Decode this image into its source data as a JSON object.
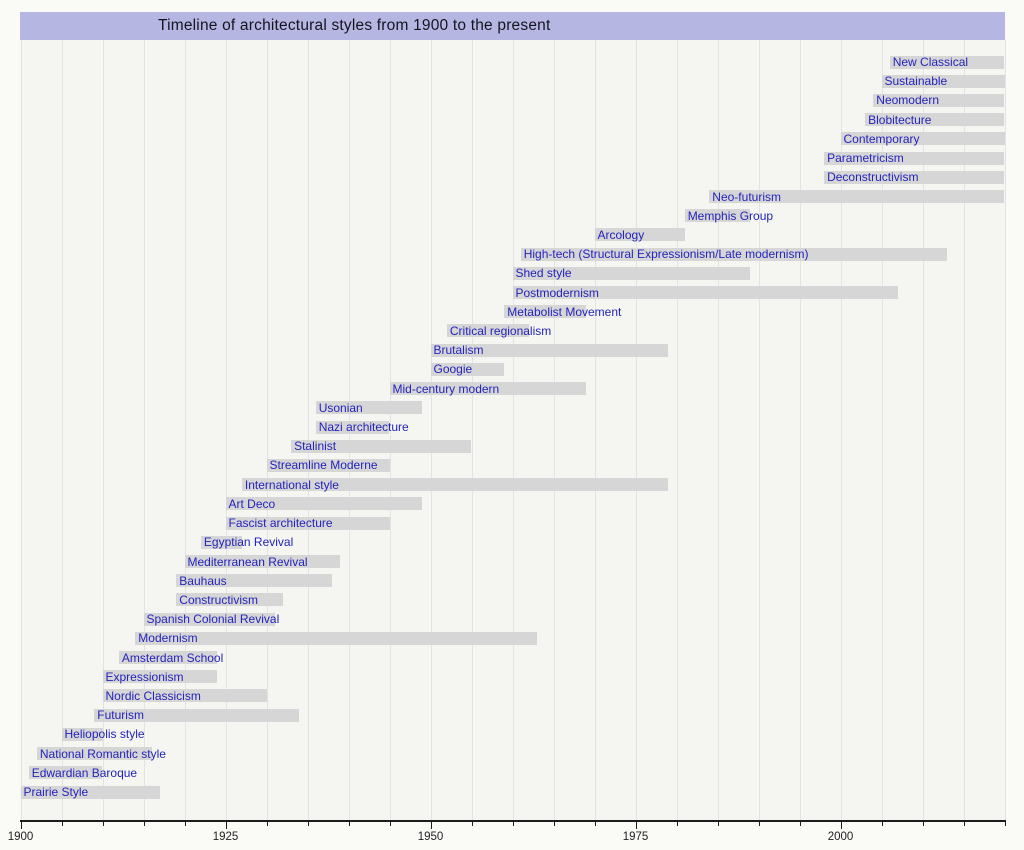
{
  "colors": {
    "page_background": "#fafaf7",
    "plot_background": "#f5f5f1",
    "title_background": "#b6b6e2",
    "bar_fill": "#d6d6d6",
    "bar_label_blue": "#2323bd",
    "gridline": "#e3e3e3",
    "axis": "#1c1c1c"
  },
  "chart_data": {
    "type": "bar",
    "subtype": "horizontal-timeline-gantt",
    "title": "Timeline of architectural styles from 1900 to the present",
    "xlabel": "",
    "ylabel": "",
    "x_axis": {
      "min": 1900,
      "max": 2020,
      "labeled_ticks": [
        1900,
        1925,
        1950,
        1975,
        2000
      ],
      "tick_interval": 5,
      "grid": true
    },
    "legend": null,
    "series": [
      {
        "name": "New Classical",
        "start": 2006,
        "end": 2020
      },
      {
        "name": "Sustainable",
        "start": 2005,
        "end": 2020
      },
      {
        "name": "Neomodern",
        "start": 2004,
        "end": 2020
      },
      {
        "name": "Blobitecture",
        "start": 2003,
        "end": 2020
      },
      {
        "name": "Contemporary",
        "start": 2000,
        "end": 2020
      },
      {
        "name": "Parametricism",
        "start": 1998,
        "end": 2020
      },
      {
        "name": "Deconstructivism",
        "start": 1998,
        "end": 2020
      },
      {
        "name": "Neo-futurism",
        "start": 1984,
        "end": 2020
      },
      {
        "name": "Memphis Group",
        "start": 1981,
        "end": 1989
      },
      {
        "name": "Arcology",
        "start": 1970,
        "end": 1981
      },
      {
        "name": "High-tech (Structural Expressionism/Late modernism)",
        "start": 1961,
        "end": 2013
      },
      {
        "name": "Shed style",
        "start": 1960,
        "end": 1989
      },
      {
        "name": "Postmodernism",
        "start": 1960,
        "end": 2007
      },
      {
        "name": "Metabolist Movement",
        "start": 1959,
        "end": 1969
      },
      {
        "name": "Critical regionalism",
        "start": 1952,
        "end": 1962
      },
      {
        "name": "Brutalism",
        "start": 1950,
        "end": 1979
      },
      {
        "name": "Googie",
        "start": 1950,
        "end": 1959
      },
      {
        "name": "Mid-century modern",
        "start": 1945,
        "end": 1969
      },
      {
        "name": "Usonian",
        "start": 1936,
        "end": 1949
      },
      {
        "name": "Nazi architecture",
        "start": 1936,
        "end": 1945
      },
      {
        "name": "Stalinist",
        "start": 1933,
        "end": 1955
      },
      {
        "name": "Streamline Moderne",
        "start": 1930,
        "end": 1945
      },
      {
        "name": "International style",
        "start": 1927,
        "end": 1979
      },
      {
        "name": "Art Deco",
        "start": 1925,
        "end": 1949
      },
      {
        "name": "Fascist architecture",
        "start": 1925,
        "end": 1945
      },
      {
        "name": "Egyptian Revival",
        "start": 1922,
        "end": 1927
      },
      {
        "name": "Mediterranean Revival",
        "start": 1920,
        "end": 1939
      },
      {
        "name": "Bauhaus",
        "start": 1919,
        "end": 1938
      },
      {
        "name": "Constructivism",
        "start": 1919,
        "end": 1932
      },
      {
        "name": "Spanish Colonial Revival",
        "start": 1915,
        "end": 1931
      },
      {
        "name": "Modernism",
        "start": 1914,
        "end": 1963
      },
      {
        "name": "Amsterdam School",
        "start": 1912,
        "end": 1924
      },
      {
        "name": "Expressionism",
        "start": 1910,
        "end": 1924
      },
      {
        "name": "Nordic Classicism",
        "start": 1910,
        "end": 1930
      },
      {
        "name": "Futurism",
        "start": 1909,
        "end": 1934
      },
      {
        "name": "Heliopolis style",
        "start": 1905,
        "end": 1910
      },
      {
        "name": "National Romantic style",
        "start": 1902,
        "end": 1916
      },
      {
        "name": "Edwardian Baroque",
        "start": 1901,
        "end": 1910
      },
      {
        "name": "Prairie Style",
        "start": 1900,
        "end": 1917
      }
    ]
  }
}
